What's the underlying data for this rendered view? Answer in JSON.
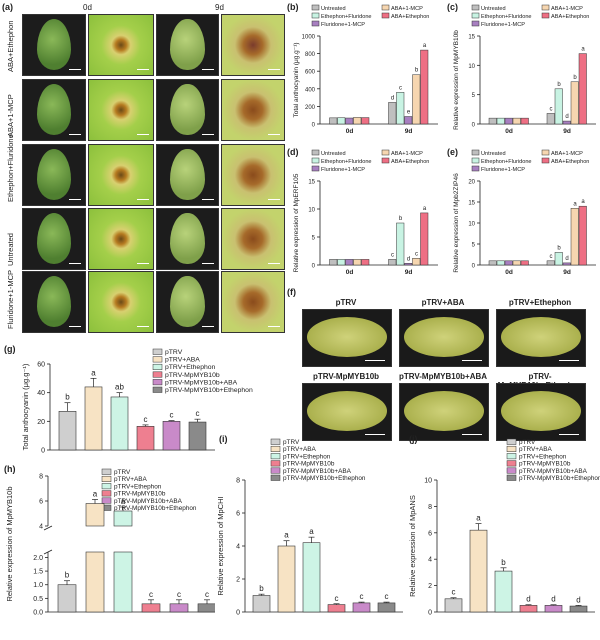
{
  "panel_a": {
    "letter": "(a)",
    "day_labels": [
      "0d",
      "9d"
    ],
    "row_labels": [
      "ABA+Ethephon",
      "ABA+1-MCP",
      "Ethephon+Fluridone",
      "Untreated",
      "Fluridone+1-MCP"
    ]
  },
  "panel_f": {
    "letter": "(f)",
    "titles": [
      "pTRV",
      "pTRV+ABA",
      "pTRV+Ethephon",
      "pTRV-MpMYB10b",
      "pTRV-MpMYB10b+ABA",
      "pTRV-MpMYB10b+Ethephon"
    ]
  },
  "colors": {
    "untreated": "#bfbfbf",
    "ethephon_fluridone": "#c8f3e3",
    "fluridone_mcp": "#a77fc0",
    "aba_mcp": "#f6d6b0",
    "aba_ethephon": "#ee6f84",
    "ptrv": "#cfcfcf",
    "ptrv_aba": "#f7e3c4",
    "ptrv_eth": "#cdf4e5",
    "myb": "#ee7f90",
    "myb_aba": "#c98ac9",
    "myb_eth": "#8a8a8a"
  },
  "chart_data": [
    {
      "id": "b",
      "letter": "(b)",
      "type": "bar",
      "ylabel": "Total anthocyanin (μg.g⁻¹)",
      "categories": [
        "0d",
        "9d"
      ],
      "yticks": [
        "0",
        "200",
        "400",
        "600",
        "800",
        "1000"
      ],
      "ylim": [
        0,
        1000
      ],
      "legend": [
        "Untreated",
        "Ethephon+Fluridone",
        "Fluridone+1-MCP",
        "ABA+1-MCP",
        "ABA+Ethephon"
      ],
      "series": [
        {
          "name": "Untreated",
          "values": [
            70,
            245
          ],
          "letters": [
            "",
            "d"
          ]
        },
        {
          "name": "Ethephon+Fluridone",
          "values": [
            72,
            360
          ],
          "letters": [
            "",
            "c"
          ]
        },
        {
          "name": "Fluridone+1-MCP",
          "values": [
            68,
            85
          ],
          "letters": [
            "",
            "e"
          ]
        },
        {
          "name": "ABA+1-MCP",
          "values": [
            75,
            560
          ],
          "letters": [
            "",
            "b"
          ]
        },
        {
          "name": "ABA+Ethephon",
          "values": [
            73,
            840
          ],
          "letters": [
            "",
            "a"
          ]
        }
      ]
    },
    {
      "id": "c",
      "letter": "(c)",
      "type": "bar",
      "ylabel": "Relative expression of MpMYB10b",
      "categories": [
        "0d",
        "9d"
      ],
      "yticks": [
        "0",
        "5",
        "10",
        "15"
      ],
      "ylim": [
        0,
        15
      ],
      "legend": [
        "Untreated",
        "Ethephon+Fluridone",
        "Fluridone+1-MCP",
        "ABA+1-MCP",
        "ABA+Ethephon"
      ],
      "series": [
        {
          "name": "Untreated",
          "values": [
            1.0,
            1.8
          ],
          "letters": [
            "",
            "c"
          ]
        },
        {
          "name": "Ethephon+Fluridone",
          "values": [
            1.0,
            6.0
          ],
          "letters": [
            "",
            "b"
          ]
        },
        {
          "name": "Fluridone+1-MCP",
          "values": [
            1.0,
            0.5
          ],
          "letters": [
            "",
            "d"
          ]
        },
        {
          "name": "ABA+1-MCP",
          "values": [
            1.0,
            7.2
          ],
          "letters": [
            "",
            "b"
          ]
        },
        {
          "name": "ABA+Ethephon",
          "values": [
            1.0,
            12.0
          ],
          "letters": [
            "",
            "a"
          ]
        }
      ]
    },
    {
      "id": "d",
      "letter": "(d)",
      "type": "bar",
      "ylabel": "Relative expression of MpERF105",
      "categories": [
        "0d",
        "9d"
      ],
      "yticks": [
        "0",
        "5",
        "10",
        "15"
      ],
      "ylim": [
        0,
        15
      ],
      "legend": [
        "Untreated",
        "Ethephon+Fluridone",
        "Fluridone+1-MCP",
        "ABA+1-MCP",
        "ABA+Ethephon"
      ],
      "series": [
        {
          "name": "Untreated",
          "values": [
            1.0,
            1.0
          ],
          "letters": [
            "",
            "c"
          ]
        },
        {
          "name": "Ethephon+Fluridone",
          "values": [
            1.0,
            7.5
          ],
          "letters": [
            "",
            "b"
          ]
        },
        {
          "name": "Fluridone+1-MCP",
          "values": [
            1.0,
            0.3
          ],
          "letters": [
            "",
            "d"
          ]
        },
        {
          "name": "ABA+1-MCP",
          "values": [
            1.0,
            1.2
          ],
          "letters": [
            "",
            "c"
          ]
        },
        {
          "name": "ABA+Ethephon",
          "values": [
            1.0,
            9.3
          ],
          "letters": [
            "",
            "a"
          ]
        }
      ]
    },
    {
      "id": "e",
      "letter": "(e)",
      "type": "bar",
      "ylabel": "Relative expression of Mpb2ZIP46",
      "categories": [
        "0d",
        "9d"
      ],
      "yticks": [
        "0",
        "5",
        "10",
        "15",
        "20"
      ],
      "ylim": [
        0,
        20
      ],
      "legend": [
        "Untreated",
        "Ethephon+Fluridone",
        "Fluridone+1-MCP",
        "ABA+1-MCP",
        "ABA+Ethephon"
      ],
      "series": [
        {
          "name": "Untreated",
          "values": [
            1.0,
            1.0
          ],
          "letters": [
            "",
            "c"
          ]
        },
        {
          "name": "Ethephon+Fluridone",
          "values": [
            1.0,
            3.0
          ],
          "letters": [
            "",
            "b"
          ]
        },
        {
          "name": "Fluridone+1-MCP",
          "values": [
            1.0,
            0.5
          ],
          "letters": [
            "",
            "d"
          ]
        },
        {
          "name": "ABA+1-MCP",
          "values": [
            1.0,
            13.5
          ],
          "letters": [
            "",
            "a"
          ]
        },
        {
          "name": "ABA+Ethephon",
          "values": [
            1.0,
            14.0
          ],
          "letters": [
            "",
            "a"
          ]
        }
      ]
    },
    {
      "id": "g",
      "letter": "(g)",
      "type": "bar",
      "ylabel": "Total anthocyanin (μg.g⁻¹)",
      "categories": [
        "pTRV",
        "pTRV+ABA",
        "pTRV+Ethephon",
        "pTRV-MpMYB10b",
        "pTRV-MpMYB10b+ABA",
        "pTRV-MpMYB10b+Ethephon"
      ],
      "yticks": [
        "0",
        "20",
        "40",
        "60"
      ],
      "ylim": [
        0,
        60
      ],
      "values": [
        27,
        44,
        37,
        16.5,
        20,
        19.5
      ],
      "errors": [
        6,
        6,
        3,
        1,
        0.5,
        2
      ],
      "letters": [
        "b",
        "a",
        "ab",
        "c",
        "c",
        "c"
      ]
    },
    {
      "id": "h",
      "letter": "(h)",
      "type": "bar",
      "ylabel": "Relative expression of MpMYB10b",
      "categories": [
        "pTRV",
        "pTRV+ABA",
        "pTRV+Ethephon",
        "pTRV-MpMYB10b",
        "pTRV-MpMYB10b+ABA",
        "pTRV-MpMYB10b+Ethephon"
      ],
      "yticks_low": [
        "0.0",
        "0.5",
        "1.0",
        "1.5",
        "2.0"
      ],
      "yticks_high": [
        "4",
        "6",
        "8"
      ],
      "axis_break": [
        2.2,
        4
      ],
      "ylim": [
        0,
        8
      ],
      "values": [
        1.0,
        5.8,
        5.2,
        0.3,
        0.3,
        0.3
      ],
      "letters": [
        "b",
        "a",
        "a",
        "c",
        "c",
        "c"
      ]
    },
    {
      "id": "i",
      "letter": "(i)",
      "type": "bar",
      "ylabel": "Relative expression of MpCHI",
      "categories": [
        "pTRV",
        "pTRV+ABA",
        "pTRV+Ethephon",
        "pTRV-MpMYB10b",
        "pTRV-MpMYB10b+ABA",
        "pTRV-MpMYB10b+Ethephon"
      ],
      "yticks": [
        "0",
        "2",
        "4",
        "6",
        "8"
      ],
      "ylim": [
        0,
        8
      ],
      "values": [
        1.0,
        4.0,
        4.2,
        0.45,
        0.55,
        0.55
      ],
      "letters": [
        "b",
        "a",
        "a",
        "c",
        "c",
        "c"
      ]
    },
    {
      "id": "j",
      "letter": "(j)",
      "type": "bar",
      "ylabel": "Relative expression of MpANS",
      "categories": [
        "pTRV",
        "pTRV+ABA",
        "pTRV+Ethephon",
        "pTRV-MpMYB10b",
        "pTRV-MpMYB10b+ABA",
        "pTRV-MpMYB10b+Ethephon"
      ],
      "yticks": [
        "0",
        "2",
        "4",
        "6",
        "8",
        "10"
      ],
      "ylim": [
        0,
        10
      ],
      "values": [
        1.0,
        6.2,
        3.1,
        0.5,
        0.5,
        0.45
      ],
      "letters": [
        "c",
        "a",
        "b",
        "d",
        "d",
        "d"
      ]
    }
  ]
}
